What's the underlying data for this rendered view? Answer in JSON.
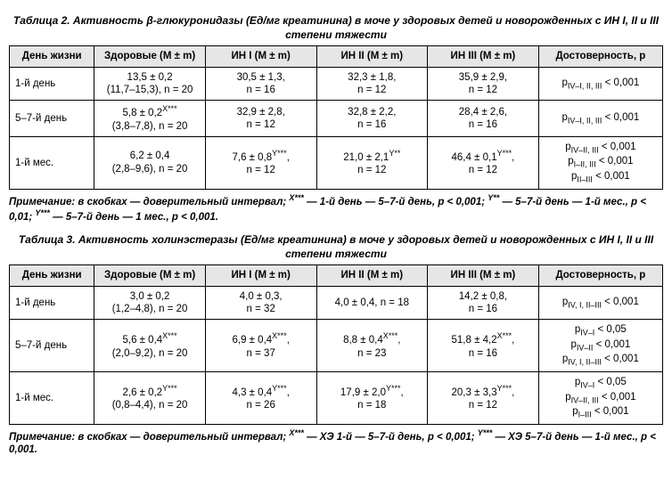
{
  "table2": {
    "title": "Таблица 2. Активность β-глюкуронидазы (Ед/мг креатинина) в моче у здоровых детей и новорожденных с ИН I, II и III степени тяжести",
    "headers": [
      "День жизни",
      "Здоровые (M ± m)",
      "ИН I (M ± m)",
      "ИН II (M ± m)",
      "ИН III (M ± m)",
      "Достоверность, p"
    ],
    "rows": [
      {
        "day": "1-й день",
        "c1a": "13,5 ± 0,2",
        "c1b": "(11,7–15,3), n = 20",
        "c2a": "30,5 ± 1,3,",
        "c2b": "n = 16",
        "c3a": "32,3 ± 1,8,",
        "c3b": "n = 12",
        "c4a": "35,9 ± 2,9,",
        "c4b": "n = 12",
        "p": [
          "p<sub>IV–I, II, III</sub> < 0,001"
        ]
      },
      {
        "day": "5–7-й день",
        "c1a": "5,8 ± 0,2<sup>X***</sup>",
        "c1b": "(3,8–7,8), n = 20",
        "c2a": "32,9 ± 2,8,",
        "c2b": "n = 12",
        "c3a": "32,8 ± 2,2,",
        "c3b": "n = 16",
        "c4a": "28,4 ± 2,6,",
        "c4b": "n = 16",
        "p": [
          "p<sub>IV–I, II, III</sub> < 0,001"
        ]
      },
      {
        "day": "1-й мес.",
        "c1a": "6,2 ± 0,4",
        "c1b": "(2,8–9,6), n = 20",
        "c2a": "7,6 ± 0,8<sup>Y***</sup>,",
        "c2b": "n = 12",
        "c3a": "21,0 ± 2,1<sup>Y**</sup>",
        "c3b": "n = 12",
        "c4a": "46,4 ± 0,1<sup>Y***</sup>,",
        "c4b": "n = 12",
        "p": [
          "p<sub>IV–II, III</sub> < 0,001",
          "p<sub>I–II, III</sub> < 0,001",
          "p<sub>II–III</sub> < 0,001"
        ]
      }
    ],
    "note": "Примечание: в скобках — доверительный интервал; <sup>X***</sup> — 1-й день — 5–7-й день, p < 0,001; <sup>Y**</sup> — 5–7-й день — 1-й мес., p < 0,01; <sup>Y***</sup> — 5–7-й день — 1 мес., p < 0,001."
  },
  "table3": {
    "title": "Таблица 3. Активность холинэстеразы (Ед/мг креатинина) в моче у здоровых детей и новорожденных с ИН I, II и III степени тяжести",
    "headers": [
      "День жизни",
      "Здоровые (M ± m)",
      "ИН I (M ± m)",
      "ИН II (M ± m)",
      "ИН III (M ± m)",
      "Достоверность, p"
    ],
    "rows": [
      {
        "day": "1-й день",
        "c1a": "3,0 ± 0,2",
        "c1b": "(1,2–4,8), n = 20",
        "c2a": "4,0 ± 0,3,",
        "c2b": "n = 32",
        "c3": "4,0 ± 0,4, n = 18",
        "c4a": "14,2 ± 0,8,",
        "c4b": "n = 16",
        "p": [
          "p<sub>IV, I, II–III</sub> < 0,001"
        ]
      },
      {
        "day": "5–7-й день",
        "c1a": "5,6 ± 0,4<sup>X***</sup>",
        "c1b": "(2,0–9,2), n = 20",
        "c2a": "6,9 ± 0,4<sup>X***</sup>,",
        "c2b": "n = 37",
        "c3a": "8,8 ± 0,4<sup>X***</sup>,",
        "c3b": "n = 23",
        "c4a": "51,8 ± 4,2<sup>X***</sup>,",
        "c4b": "n = 16",
        "p": [
          "p<sub>IV–I</sub> < 0,05",
          "p<sub>IV–II</sub> < 0,001",
          "p<sub>IV, I, II–III</sub> < 0,001"
        ]
      },
      {
        "day": "1-й мес.",
        "c1a": "2,6 ± 0,2<sup>Y***</sup>",
        "c1b": "(0,8–4,4), n = 20",
        "c2a": "4,3 ± 0,4<sup>Y***</sup>,",
        "c2b": "n = 26",
        "c3a": "17,9 ± 2,0<sup>Y***</sup>,",
        "c3b": "n = 18",
        "c4a": "20,3 ± 3,3<sup>Y***</sup>,",
        "c4b": "n = 12",
        "p": [
          "p<sub>IV–I</sub> < 0,05",
          "p<sub>IV–II, III</sub> < 0,001",
          "p<sub>I–III</sub> < 0,001"
        ]
      }
    ],
    "note": "Примечание: в скобках — доверительный интервал; <sup>X***</sup> — ХЭ 1-й — 5–7-й день, p < 0,001; <sup>Y***</sup> — ХЭ 5–7-й день — 1-й мес., p < 0,001."
  }
}
